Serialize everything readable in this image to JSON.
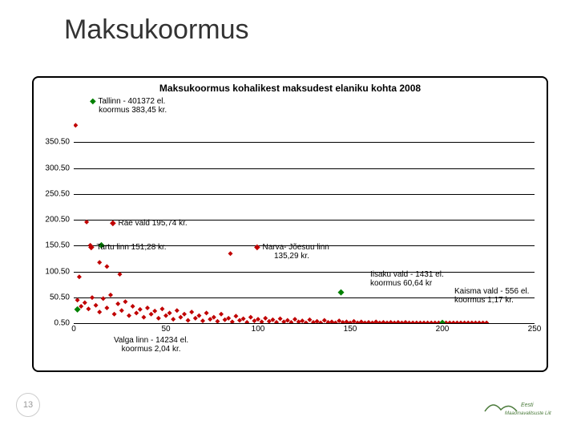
{
  "slide": {
    "title": "Maksukoormus",
    "page_number": "13",
    "logo_text": "Eesti Maaomavalitsuste Liit"
  },
  "chart": {
    "type": "scatter",
    "title": "Maksukoormus kohalikest maksudest elaniku kohta 2008",
    "xlim": [
      0,
      250
    ],
    "ylim": [
      0.5,
      400.5
    ],
    "x_ticks": [
      0,
      50,
      100,
      150,
      200,
      250
    ],
    "y_ticks": [
      0.5,
      50.5,
      100.5,
      150.5,
      200.5,
      250.5,
      300.5,
      350.5
    ],
    "y_tick_labels": [
      "0.50",
      "50.50",
      "100.50",
      "150.50",
      "200.50",
      "250.50",
      "300.50",
      "350.50"
    ],
    "x_tick_labels": [
      "0",
      "50",
      "100",
      "150",
      "200",
      "250"
    ],
    "grid_color": "#000000",
    "background_color": "#ffffff",
    "annotations": {
      "tallinn": {
        "line1": "Tallinn - 401372 el.",
        "line2": "koormus 383,45 kr."
      },
      "rae": "Rae vald 195,74 kr.",
      "tartu": "Tartu linn 151,28 kr.",
      "narva": {
        "line1": "Narva- Jõesuu linn",
        "line2": "135,29 kr."
      },
      "iisaku": {
        "line1": "Iisaku vald - 1431 el.",
        "line2": "koormus 60,64 kr"
      },
      "kaisma": {
        "line1": "Kaisma vald - 556 el.",
        "line2": "koormus 1,17 kr."
      },
      "valga": {
        "line1": "Valga linn - 14234 el.",
        "line2": "koormus 2,04 kr."
      }
    },
    "marker": {
      "main_series_color": "#c00000",
      "highlight_color": "#008000",
      "size": 4,
      "shape": "diamond"
    },
    "points_main": [
      [
        1,
        383
      ],
      [
        7,
        196
      ],
      [
        9,
        151
      ],
      [
        85,
        135
      ],
      [
        3,
        90
      ],
      [
        18,
        110
      ],
      [
        25,
        95
      ],
      [
        14,
        118
      ],
      [
        2,
        45
      ],
      [
        4,
        33
      ],
      [
        6,
        40
      ],
      [
        8,
        28
      ],
      [
        10,
        50
      ],
      [
        12,
        35
      ],
      [
        14,
        22
      ],
      [
        16,
        48
      ],
      [
        18,
        30
      ],
      [
        20,
        55
      ],
      [
        22,
        18
      ],
      [
        24,
        38
      ],
      [
        26,
        25
      ],
      [
        28,
        42
      ],
      [
        30,
        15
      ],
      [
        32,
        33
      ],
      [
        34,
        20
      ],
      [
        36,
        27
      ],
      [
        38,
        12
      ],
      [
        40,
        30
      ],
      [
        42,
        18
      ],
      [
        44,
        24
      ],
      [
        46,
        10
      ],
      [
        48,
        28
      ],
      [
        50,
        15
      ],
      [
        52,
        20
      ],
      [
        54,
        8
      ],
      [
        56,
        25
      ],
      [
        58,
        12
      ],
      [
        60,
        18
      ],
      [
        62,
        6
      ],
      [
        64,
        22
      ],
      [
        66,
        10
      ],
      [
        68,
        15
      ],
      [
        70,
        5
      ],
      [
        72,
        20
      ],
      [
        74,
        8
      ],
      [
        76,
        12
      ],
      [
        78,
        4
      ],
      [
        80,
        18
      ],
      [
        82,
        7
      ],
      [
        84,
        10
      ],
      [
        86,
        3
      ],
      [
        88,
        14
      ],
      [
        90,
        6
      ],
      [
        92,
        9
      ],
      [
        94,
        2
      ],
      [
        96,
        12
      ],
      [
        98,
        5
      ],
      [
        100,
        8
      ],
      [
        102,
        3
      ],
      [
        104,
        10
      ],
      [
        106,
        4
      ],
      [
        108,
        7
      ],
      [
        110,
        2
      ],
      [
        112,
        9
      ],
      [
        114,
        3
      ],
      [
        116,
        6
      ],
      [
        118,
        2
      ],
      [
        120,
        8
      ],
      [
        122,
        3
      ],
      [
        124,
        5
      ],
      [
        126,
        1
      ],
      [
        128,
        7
      ],
      [
        130,
        2
      ],
      [
        132,
        4
      ],
      [
        134,
        1
      ],
      [
        136,
        6
      ],
      [
        138,
        2
      ],
      [
        140,
        3
      ],
      [
        142,
        1
      ],
      [
        144,
        5
      ],
      [
        146,
        2
      ],
      [
        148,
        3
      ],
      [
        150,
        1
      ],
      [
        152,
        4
      ],
      [
        154,
        1
      ],
      [
        156,
        3
      ],
      [
        158,
        1
      ],
      [
        160,
        2
      ],
      [
        162,
        1
      ],
      [
        164,
        3
      ],
      [
        166,
        1
      ],
      [
        168,
        2
      ],
      [
        170,
        1
      ],
      [
        172,
        2
      ],
      [
        174,
        1
      ],
      [
        176,
        2
      ],
      [
        178,
        1
      ],
      [
        180,
        2
      ],
      [
        182,
        1
      ],
      [
        184,
        1
      ],
      [
        186,
        1
      ],
      [
        188,
        1
      ],
      [
        190,
        1
      ],
      [
        192,
        1
      ],
      [
        194,
        1
      ],
      [
        196,
        1
      ],
      [
        198,
        1
      ],
      [
        200,
        1
      ],
      [
        202,
        1
      ],
      [
        204,
        1
      ],
      [
        206,
        1
      ],
      [
        208,
        1
      ],
      [
        210,
        1
      ],
      [
        212,
        1
      ],
      [
        214,
        1
      ],
      [
        216,
        1
      ],
      [
        218,
        1
      ],
      [
        220,
        1
      ],
      [
        222,
        1
      ],
      [
        224,
        1
      ]
    ],
    "points_highlight": [
      [
        2,
        27
      ],
      [
        15,
        151
      ],
      [
        145,
        60
      ],
      [
        200,
        1
      ]
    ]
  }
}
